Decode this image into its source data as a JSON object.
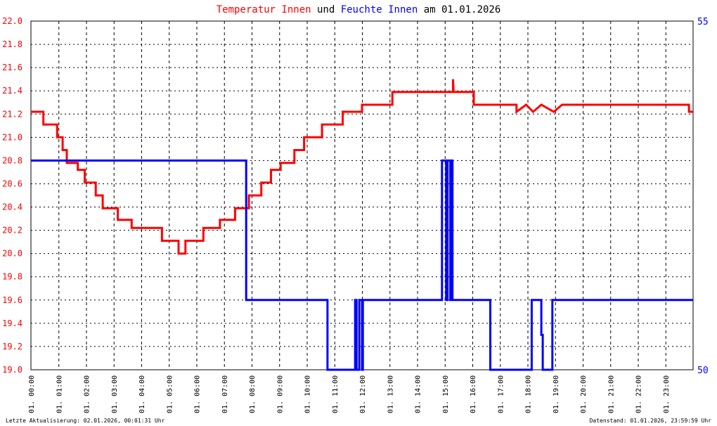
{
  "title": {
    "part1": "Temperatur Innen",
    "part2": " und ",
    "part3": "Feuchte Innen",
    "part4": " am 01.01.2026",
    "color1": "#ff0000",
    "color2": "#000000",
    "color3": "#0000ff",
    "color4": "#000000"
  },
  "footer": {
    "left": "Letzte Aktualisierung: 02.01.2026, 00:01:31 Uhr",
    "right": "Datenstand: 01.01.2026, 23:59:59 Uhr"
  },
  "chart_data": {
    "type": "line",
    "grid": true,
    "x_range_hours": [
      0,
      24
    ],
    "x_tick_labels": [
      "01. 00:00",
      "01. 01:00",
      "01. 02:00",
      "01. 03:00",
      "01. 04:00",
      "01. 05:00",
      "01. 06:00",
      "01. 07:00",
      "01. 08:00",
      "01. 09:00",
      "01. 10:00",
      "01. 11:00",
      "01. 12:00",
      "01. 13:00",
      "01. 14:00",
      "01. 15:00",
      "01. 16:00",
      "01. 17:00",
      "01. 18:00",
      "01. 19:00",
      "01. 20:00",
      "01. 21:00",
      "01. 22:00",
      "01. 23:00"
    ],
    "y_left": {
      "range": [
        19.0,
        22.0
      ],
      "color": "#ff0000",
      "tick_labels": [
        "19.0",
        "19.2",
        "19.4",
        "19.6",
        "19.8",
        "20.0",
        "20.2",
        "20.4",
        "20.6",
        "20.8",
        "21.0",
        "21.2",
        "21.4",
        "21.6",
        "21.8",
        "22.0"
      ]
    },
    "y_right": {
      "range": [
        50,
        55
      ],
      "color": "#0000ff",
      "tick_labels": [
        "50",
        "55"
      ]
    },
    "series": [
      {
        "color": "#ff0000",
        "axis": "left",
        "points": [
          [
            0.0,
            21.22
          ],
          [
            0.45,
            21.22
          ],
          [
            0.45,
            21.11
          ],
          [
            0.95,
            21.11
          ],
          [
            0.95,
            21.0
          ],
          [
            1.15,
            21.0
          ],
          [
            1.15,
            20.89
          ],
          [
            1.3,
            20.89
          ],
          [
            1.3,
            20.78
          ],
          [
            1.7,
            20.78
          ],
          [
            1.7,
            20.72
          ],
          [
            1.95,
            20.72
          ],
          [
            1.95,
            20.61
          ],
          [
            2.35,
            20.61
          ],
          [
            2.35,
            20.5
          ],
          [
            2.6,
            20.5
          ],
          [
            2.6,
            20.39
          ],
          [
            3.15,
            20.39
          ],
          [
            3.15,
            20.29
          ],
          [
            3.65,
            20.29
          ],
          [
            3.65,
            20.22
          ],
          [
            4.75,
            20.22
          ],
          [
            4.75,
            20.11
          ],
          [
            5.35,
            20.11
          ],
          [
            5.35,
            20.0
          ],
          [
            5.6,
            20.0
          ],
          [
            5.6,
            20.11
          ],
          [
            6.25,
            20.11
          ],
          [
            6.25,
            20.22
          ],
          [
            6.85,
            20.22
          ],
          [
            6.85,
            20.29
          ],
          [
            7.4,
            20.29
          ],
          [
            7.4,
            20.39
          ],
          [
            7.9,
            20.39
          ],
          [
            7.9,
            20.5
          ],
          [
            8.35,
            20.5
          ],
          [
            8.35,
            20.61
          ],
          [
            8.7,
            20.61
          ],
          [
            8.7,
            20.72
          ],
          [
            9.05,
            20.72
          ],
          [
            9.05,
            20.78
          ],
          [
            9.55,
            20.78
          ],
          [
            9.55,
            20.89
          ],
          [
            9.9,
            20.89
          ],
          [
            9.9,
            21.0
          ],
          [
            10.55,
            21.0
          ],
          [
            10.55,
            21.11
          ],
          [
            11.3,
            21.11
          ],
          [
            11.3,
            21.22
          ],
          [
            12.0,
            21.22
          ],
          [
            12.0,
            21.28
          ],
          [
            13.1,
            21.28
          ],
          [
            13.1,
            21.39
          ],
          [
            15.3,
            21.39
          ],
          [
            15.3,
            21.5
          ],
          [
            15.32,
            21.39
          ],
          [
            16.05,
            21.39
          ],
          [
            16.05,
            21.28
          ],
          [
            17.6,
            21.28
          ],
          [
            17.6,
            21.22
          ],
          [
            17.95,
            21.28
          ],
          [
            18.2,
            21.22
          ],
          [
            18.5,
            21.28
          ],
          [
            18.95,
            21.22
          ],
          [
            19.25,
            21.28
          ],
          [
            23.85,
            21.28
          ],
          [
            23.85,
            21.22
          ],
          [
            24.0,
            21.22
          ]
        ]
      },
      {
        "color": "#0000ff",
        "axis": "right",
        "points": [
          [
            0.0,
            53.0
          ],
          [
            7.8,
            53.0
          ],
          [
            7.8,
            51.0
          ],
          [
            10.75,
            51.0
          ],
          [
            10.75,
            50.0
          ],
          [
            11.75,
            50.0
          ],
          [
            11.75,
            51.0
          ],
          [
            11.8,
            51.0
          ],
          [
            11.8,
            50.0
          ],
          [
            11.9,
            50.0
          ],
          [
            11.9,
            51.0
          ],
          [
            12.0,
            51.0
          ],
          [
            12.0,
            50.0
          ],
          [
            12.03,
            50.0
          ],
          [
            12.03,
            51.0
          ],
          [
            14.9,
            51.0
          ],
          [
            14.9,
            53.0
          ],
          [
            15.05,
            53.0
          ],
          [
            15.05,
            51.0
          ],
          [
            15.1,
            51.0
          ],
          [
            15.1,
            53.0
          ],
          [
            15.2,
            53.0
          ],
          [
            15.2,
            51.0
          ],
          [
            15.22,
            51.0
          ],
          [
            15.22,
            53.0
          ],
          [
            15.28,
            53.0
          ],
          [
            15.28,
            51.0
          ],
          [
            16.65,
            51.0
          ],
          [
            16.65,
            50.0
          ],
          [
            18.15,
            50.0
          ],
          [
            18.15,
            51.0
          ],
          [
            18.5,
            51.0
          ],
          [
            18.5,
            50.5
          ],
          [
            18.55,
            50.5
          ],
          [
            18.55,
            50.0
          ],
          [
            18.9,
            50.0
          ],
          [
            18.9,
            51.0
          ],
          [
            24.0,
            51.0
          ]
        ]
      }
    ]
  }
}
